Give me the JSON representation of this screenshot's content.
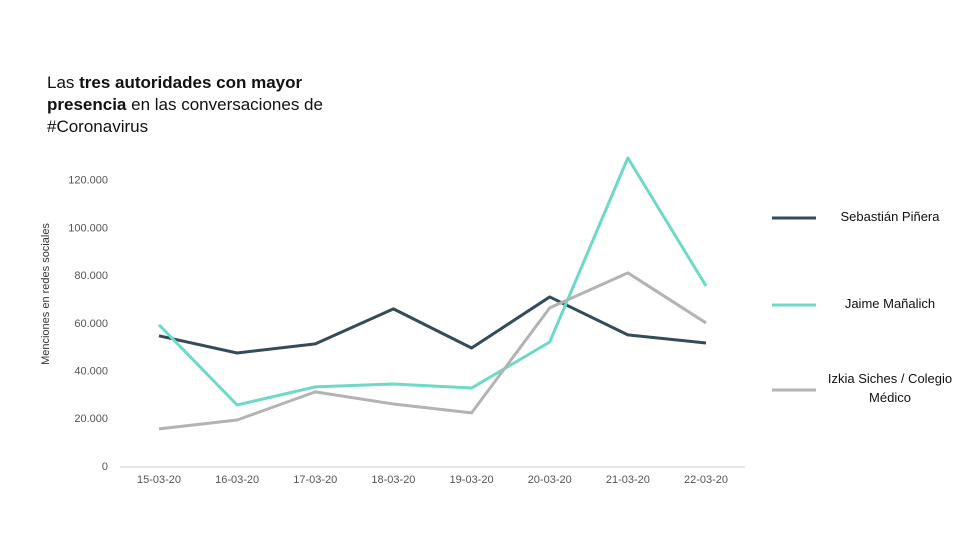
{
  "chart_data": {
    "type": "line",
    "title_parts": [
      {
        "text": "Las ",
        "bold": false
      },
      {
        "text": "tres autoridades con mayor presencia",
        "bold": true
      },
      {
        "text": " en las conversaciones de #Coronavirus",
        "bold": false
      }
    ],
    "y_label": "Menciones en redes sociales",
    "categories": [
      "15-03-20",
      "16-03-20",
      "17-03-20",
      "18-03-20",
      "19-03-20",
      "20-03-20",
      "21-03-20",
      "22-03-20"
    ],
    "series": [
      {
        "name": "Sebastián Piñera",
        "color": "#344b5a",
        "values": [
          55000,
          47800,
          51600,
          66300,
          49900,
          71300,
          55400,
          52000
        ]
      },
      {
        "name": "Jaime Mañalich",
        "color": "#6dd9c6",
        "values": [
          59600,
          26000,
          33600,
          34800,
          33100,
          52400,
          129600,
          75900
        ]
      },
      {
        "name": "Izkia Siches / Colegio  Médico",
        "color": "#b3b3b3",
        "values": [
          16000,
          19700,
          31500,
          26400,
          22700,
          66700,
          81400,
          60400
        ]
      }
    ],
    "ylim": [
      0,
      135000
    ],
    "yticks": [
      0,
      {
        "value": 20000,
        "label": "20.000"
      },
      {
        "value": 40000,
        "label": "40.000"
      },
      {
        "value": 60000,
        "label": "60.000"
      },
      {
        "value": 80000,
        "label": "80.000"
      },
      {
        "value": 100000,
        "label": "100.000"
      },
      {
        "value": 120000,
        "label": "120.000"
      }
    ],
    "grid": false
  }
}
